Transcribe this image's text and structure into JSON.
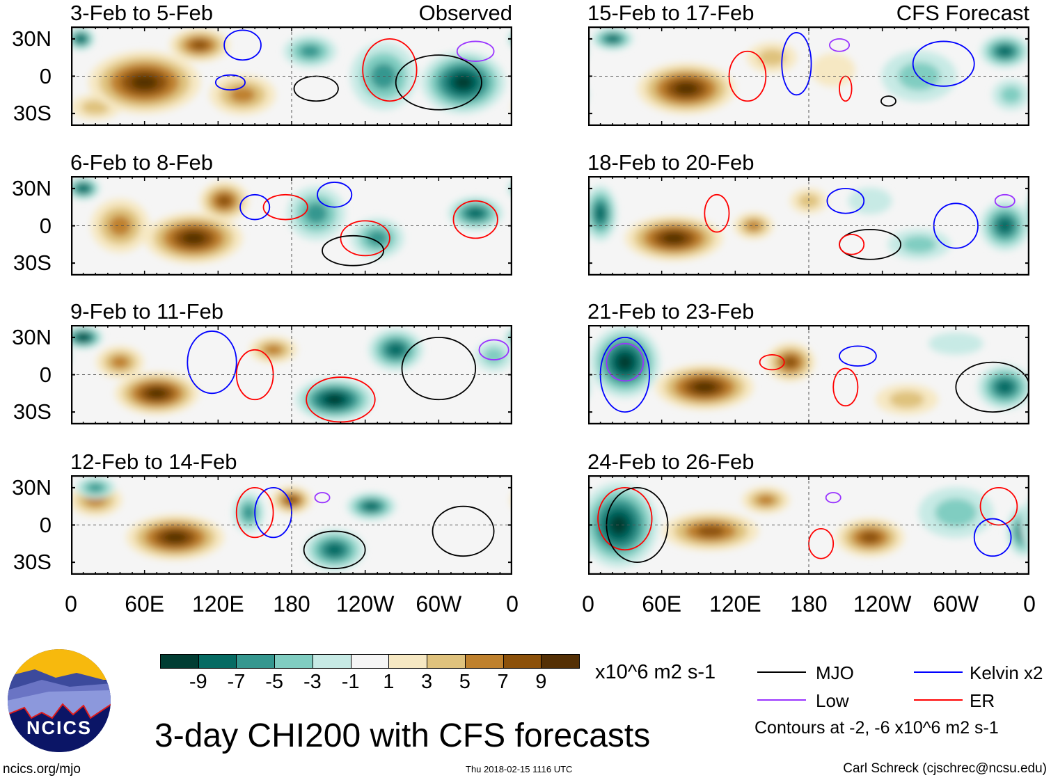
{
  "title": "3-day CHI200 with CFS forecasts",
  "labels": {
    "observed": "Observed",
    "forecast": "CFS Forecast"
  },
  "lat_ticks": [
    "30N",
    "0",
    "30S"
  ],
  "lon_ticks": [
    "0",
    "60E",
    "120E",
    "180",
    "120W",
    "60W",
    "0"
  ],
  "colorbar": {
    "units": "x10^6 m2 s-1",
    "tick_labels": [
      "-9",
      "-7",
      "-5",
      "-3",
      "-1",
      "1",
      "3",
      "5",
      "7",
      "9"
    ],
    "colors": [
      "#013d33",
      "#066b63",
      "#35978f",
      "#80cdc1",
      "#c7eae5",
      "#f5f5f5",
      "#f6e8c3",
      "#dfc27d",
      "#bf812d",
      "#8c510a",
      "#543005"
    ]
  },
  "legend": {
    "items": [
      {
        "label": "MJO",
        "color": "#000000"
      },
      {
        "label": "Kelvin x2",
        "color": "#0000ff"
      },
      {
        "label": "Low",
        "color": "#9933ff"
      },
      {
        "label": "ER",
        "color": "#ff0000"
      }
    ],
    "note": "Contours at -2, -6 x10^6 m2 s-1"
  },
  "footer": {
    "site": "ncics.org/mjo",
    "timestamp": "Thu 2018-02-15 1116 UTC",
    "author": "Carl Schreck (cjschrec@ncsu.edu)",
    "logo_text": "NCICS"
  },
  "chart_data": {
    "type": "heatmap",
    "variable": "3-day CHI200 anomaly",
    "units": "x10^6 m2 s-1",
    "lon_range": [
      0,
      360
    ],
    "lat_range": [
      -40,
      40
    ],
    "panels": [
      {
        "title": "3-Feb to 5-Feb",
        "tag": "Observed",
        "blobs": [
          [
            60,
            -5,
            10,
            40,
            22
          ],
          [
            105,
            25,
            8,
            22,
            12
          ],
          [
            140,
            -15,
            6,
            25,
            15
          ],
          [
            20,
            -25,
            4,
            20,
            10
          ],
          [
            195,
            20,
            -6,
            20,
            12
          ],
          [
            255,
            0,
            -6,
            25,
            25
          ],
          [
            320,
            -5,
            -10,
            30,
            22
          ],
          [
            8,
            30,
            -9,
            10,
            8
          ]
        ],
        "contours": [
          [
            "MJO",
            200,
            -10,
            18,
            10
          ],
          [
            "MJO",
            300,
            -5,
            35,
            22
          ],
          [
            "Kelvin",
            140,
            25,
            15,
            12
          ],
          [
            "Kelvin",
            130,
            -5,
            12,
            6
          ],
          [
            "ER",
            260,
            5,
            22,
            25
          ],
          [
            "Low",
            330,
            20,
            15,
            8
          ]
        ]
      },
      {
        "title": "6-Feb to 8-Feb",
        "tag": "",
        "blobs": [
          [
            100,
            -10,
            10,
            35,
            18
          ],
          [
            40,
            0,
            6,
            22,
            20
          ],
          [
            125,
            20,
            8,
            18,
            14
          ],
          [
            10,
            30,
            -9,
            12,
            8
          ],
          [
            200,
            10,
            -6,
            22,
            20
          ],
          [
            250,
            -10,
            -6,
            20,
            15
          ],
          [
            330,
            10,
            -8,
            20,
            12
          ]
        ],
        "contours": [
          [
            "ER",
            175,
            15,
            18,
            10
          ],
          [
            "ER",
            240,
            -10,
            20,
            14
          ],
          [
            "MJO",
            230,
            -20,
            25,
            12
          ],
          [
            "Kelvin",
            215,
            25,
            14,
            10
          ],
          [
            "Kelvin",
            150,
            15,
            12,
            10
          ],
          [
            "ER",
            330,
            5,
            18,
            15
          ]
        ]
      },
      {
        "title": "9-Feb to 11-Feb",
        "tag": "",
        "blobs": [
          [
            70,
            -15,
            10,
            30,
            15
          ],
          [
            165,
            20,
            6,
            18,
            10
          ],
          [
            40,
            10,
            6,
            18,
            12
          ],
          [
            10,
            30,
            -10,
            14,
            8
          ],
          [
            215,
            -20,
            -10,
            28,
            15
          ],
          [
            265,
            20,
            -8,
            20,
            15
          ],
          [
            345,
            15,
            -4,
            15,
            12
          ]
        ],
        "contours": [
          [
            "ER",
            150,
            0,
            15,
            20
          ],
          [
            "ER",
            220,
            -20,
            28,
            18
          ],
          [
            "Kelvin",
            115,
            10,
            20,
            25
          ],
          [
            "MJO",
            300,
            5,
            30,
            25
          ],
          [
            "Low",
            345,
            20,
            12,
            8
          ]
        ]
      },
      {
        "title": "12-Feb to 14-Feb",
        "tag": "",
        "blobs": [
          [
            85,
            -10,
            10,
            35,
            16
          ],
          [
            180,
            20,
            8,
            15,
            10
          ],
          [
            20,
            20,
            6,
            20,
            12
          ],
          [
            145,
            10,
            -6,
            12,
            15
          ],
          [
            215,
            -20,
            -8,
            22,
            15
          ],
          [
            245,
            15,
            -8,
            18,
            10
          ],
          [
            20,
            30,
            -6,
            15,
            8
          ]
        ],
        "contours": [
          [
            "ER",
            150,
            10,
            15,
            20
          ],
          [
            "Kelvin",
            165,
            10,
            15,
            20
          ],
          [
            "MJO",
            215,
            -20,
            25,
            15
          ],
          [
            "MJO",
            320,
            -5,
            25,
            20
          ],
          [
            "Low",
            205,
            22,
            6,
            4
          ]
        ]
      },
      {
        "title": "15-Feb to 17-Feb",
        "tag": "CFS Forecast",
        "blobs": [
          [
            80,
            -10,
            10,
            35,
            18
          ],
          [
            150,
            15,
            4,
            20,
            12
          ],
          [
            200,
            5,
            2,
            20,
            15
          ],
          [
            20,
            30,
            -8,
            15,
            8
          ],
          [
            270,
            0,
            -4,
            30,
            20
          ],
          [
            340,
            20,
            -8,
            18,
            12
          ],
          [
            345,
            -15,
            -4,
            15,
            12
          ]
        ],
        "contours": [
          [
            "ER",
            130,
            0,
            15,
            20
          ],
          [
            "Kelvin",
            170,
            10,
            12,
            25
          ],
          [
            "Kelvin",
            290,
            10,
            25,
            18
          ],
          [
            "Low",
            205,
            25,
            8,
            5
          ],
          [
            "MJO",
            245,
            -20,
            6,
            4
          ],
          [
            "ER",
            210,
            -10,
            5,
            10
          ]
        ]
      },
      {
        "title": "18-Feb to 20-Feb",
        "tag": "",
        "blobs": [
          [
            70,
            -10,
            10,
            35,
            16
          ],
          [
            135,
            0,
            6,
            15,
            10
          ],
          [
            180,
            20,
            4,
            15,
            10
          ],
          [
            10,
            10,
            -8,
            12,
            20
          ],
          [
            340,
            0,
            -8,
            18,
            18
          ],
          [
            270,
            -15,
            -4,
            25,
            12
          ],
          [
            230,
            20,
            -2,
            20,
            12
          ]
        ],
        "contours": [
          [
            "MJO",
            230,
            -15,
            25,
            12
          ],
          [
            "Kelvin",
            210,
            20,
            15,
            10
          ],
          [
            "Kelvin",
            300,
            0,
            18,
            18
          ],
          [
            "ER",
            105,
            10,
            10,
            15
          ],
          [
            "ER",
            215,
            -15,
            10,
            8
          ],
          [
            "Low",
            340,
            20,
            8,
            5
          ]
        ]
      },
      {
        "title": "21-Feb to 23-Feb",
        "tag": "",
        "blobs": [
          [
            95,
            -10,
            10,
            35,
            16
          ],
          [
            165,
            10,
            8,
            18,
            14
          ],
          [
            260,
            -20,
            4,
            25,
            12
          ],
          [
            30,
            10,
            -10,
            25,
            25
          ],
          [
            340,
            -10,
            -8,
            20,
            16
          ],
          [
            300,
            25,
            -2,
            25,
            10
          ]
        ],
        "contours": [
          [
            "MJO",
            330,
            -10,
            30,
            20
          ],
          [
            "Kelvin",
            30,
            0,
            20,
            30
          ],
          [
            "Low",
            30,
            10,
            15,
            15
          ],
          [
            "ER",
            210,
            -10,
            10,
            15
          ],
          [
            "ER",
            150,
            10,
            10,
            6
          ],
          [
            "Kelvin",
            220,
            15,
            15,
            8
          ]
        ]
      },
      {
        "title": "24-Feb to 26-Feb",
        "tag": "",
        "blobs": [
          [
            100,
            -5,
            8,
            35,
            14
          ],
          [
            145,
            20,
            6,
            18,
            10
          ],
          [
            230,
            -10,
            8,
            25,
            14
          ],
          [
            25,
            0,
            -10,
            28,
            30
          ],
          [
            355,
            -5,
            -8,
            12,
            18
          ],
          [
            300,
            10,
            -4,
            30,
            20
          ]
        ],
        "contours": [
          [
            "ER",
            30,
            5,
            22,
            25
          ],
          [
            "MJO",
            40,
            0,
            25,
            30
          ],
          [
            "ER",
            190,
            -15,
            10,
            12
          ],
          [
            "Low",
            200,
            22,
            6,
            4
          ],
          [
            "ER",
            335,
            15,
            15,
            15
          ],
          [
            "Kelvin",
            330,
            -10,
            15,
            15
          ]
        ]
      }
    ]
  }
}
